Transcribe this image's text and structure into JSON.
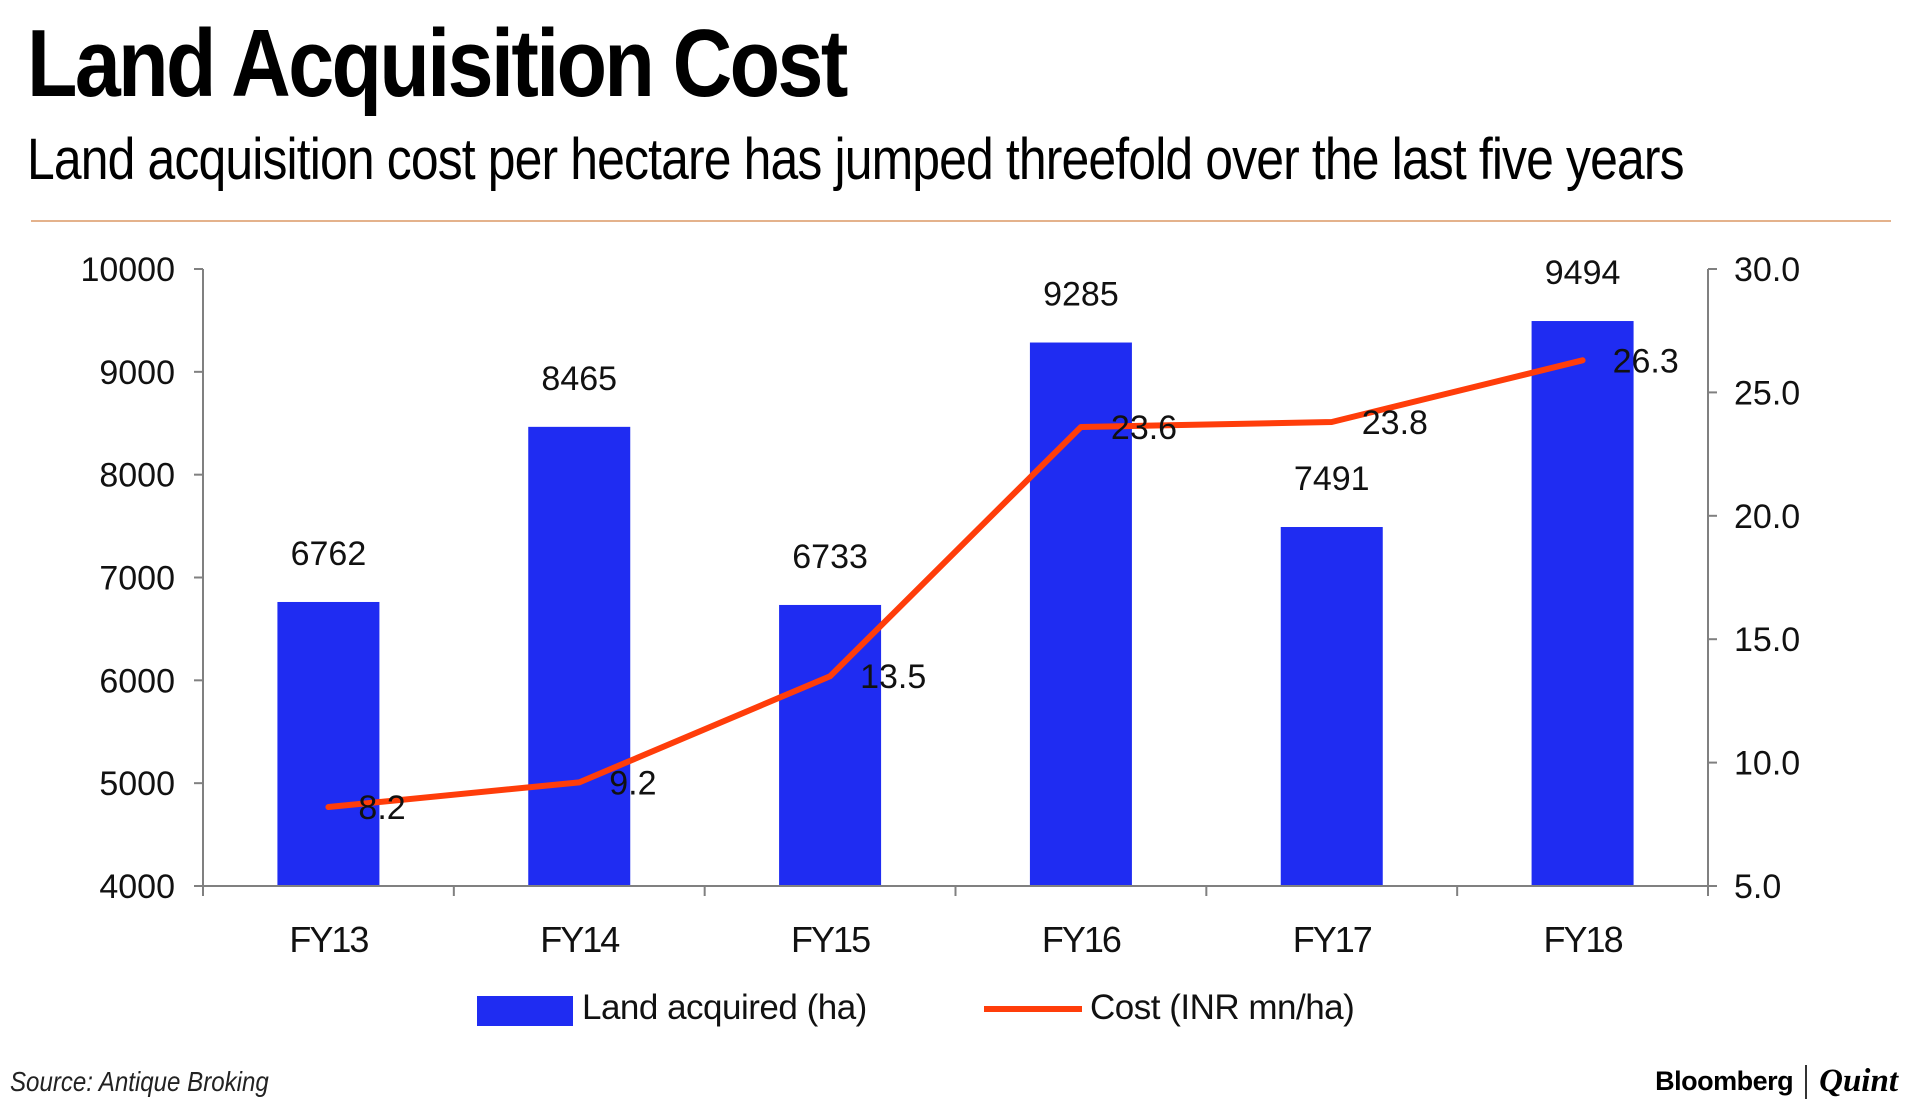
{
  "header": {
    "title": "Land Acquisition Cost",
    "subtitle": "Land acquisition cost per hectare has jumped threefold over the last five years"
  },
  "footer": {
    "source": "Source: Antique Broking",
    "brand_primary": "Bloomberg",
    "brand_secondary": "Quint"
  },
  "colors": {
    "bar": "#1f2cf2",
    "line": "#ff3d0a",
    "axis": "#808080",
    "rule": "#e4b28c"
  },
  "chart_data": {
    "type": "bar+line",
    "categories": [
      "FY13",
      "FY14",
      "FY15",
      "FY16",
      "FY17",
      "FY18"
    ],
    "series": [
      {
        "name": "Land acquired (ha)",
        "type": "bar",
        "axis": "left",
        "values": [
          6762,
          8465,
          6733,
          9285,
          7491,
          9494
        ]
      },
      {
        "name": "Cost (INR mn/ha)",
        "type": "line",
        "axis": "right",
        "values": [
          8.2,
          9.2,
          13.5,
          23.6,
          23.8,
          26.3
        ]
      }
    ],
    "y_left": {
      "min": 4000,
      "max": 10000,
      "ticks": [
        "4000",
        "5000",
        "6000",
        "7000",
        "8000",
        "9000",
        "10000"
      ]
    },
    "y_right": {
      "min": 5.0,
      "max": 30.0,
      "ticks": [
        "5.0",
        "10.0",
        "15.0",
        "20.0",
        "25.0",
        "30.0"
      ]
    },
    "legend_position": "bottom-center",
    "grid": false
  }
}
